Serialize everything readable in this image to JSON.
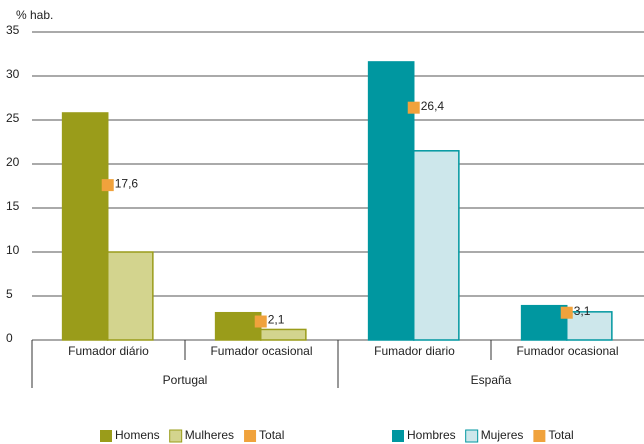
{
  "chart_data": {
    "type": "bar",
    "y_label": "% hab.",
    "ylim": [
      0,
      35
    ],
    "yticks": [
      0,
      5,
      10,
      15,
      20,
      25,
      30,
      35
    ],
    "grid": true,
    "groups": [
      {
        "name": "Portugal",
        "categories": [
          "Fumador diário",
          "Fumador ocasional"
        ],
        "series": [
          {
            "name": "Homens",
            "color": "#9a9c1a",
            "values": [
              25.8,
              3.1
            ]
          },
          {
            "name": "Mulheres",
            "color": "#d3d48e",
            "values": [
              10,
              1.2
            ]
          },
          {
            "name": "Total",
            "color": "#f0a23c",
            "values": [
              17.6,
              2.1
            ],
            "value_labels": [
              "17,6",
              "2,1"
            ]
          }
        ]
      },
      {
        "name": "España",
        "categories": [
          "Fumador diario",
          "Fumador ocasional"
        ],
        "series": [
          {
            "name": "Hombres",
            "color": "#0097a0",
            "values": [
              31.6,
              3.9
            ]
          },
          {
            "name": "Mujeres",
            "color": "#cde7eb",
            "values": [
              21.5,
              3.2
            ]
          },
          {
            "name": "Total",
            "color": "#f0a23c",
            "values": [
              26.4,
              3.1
            ],
            "value_labels": [
              "26,4",
              "3,1"
            ]
          }
        ]
      }
    ]
  }
}
